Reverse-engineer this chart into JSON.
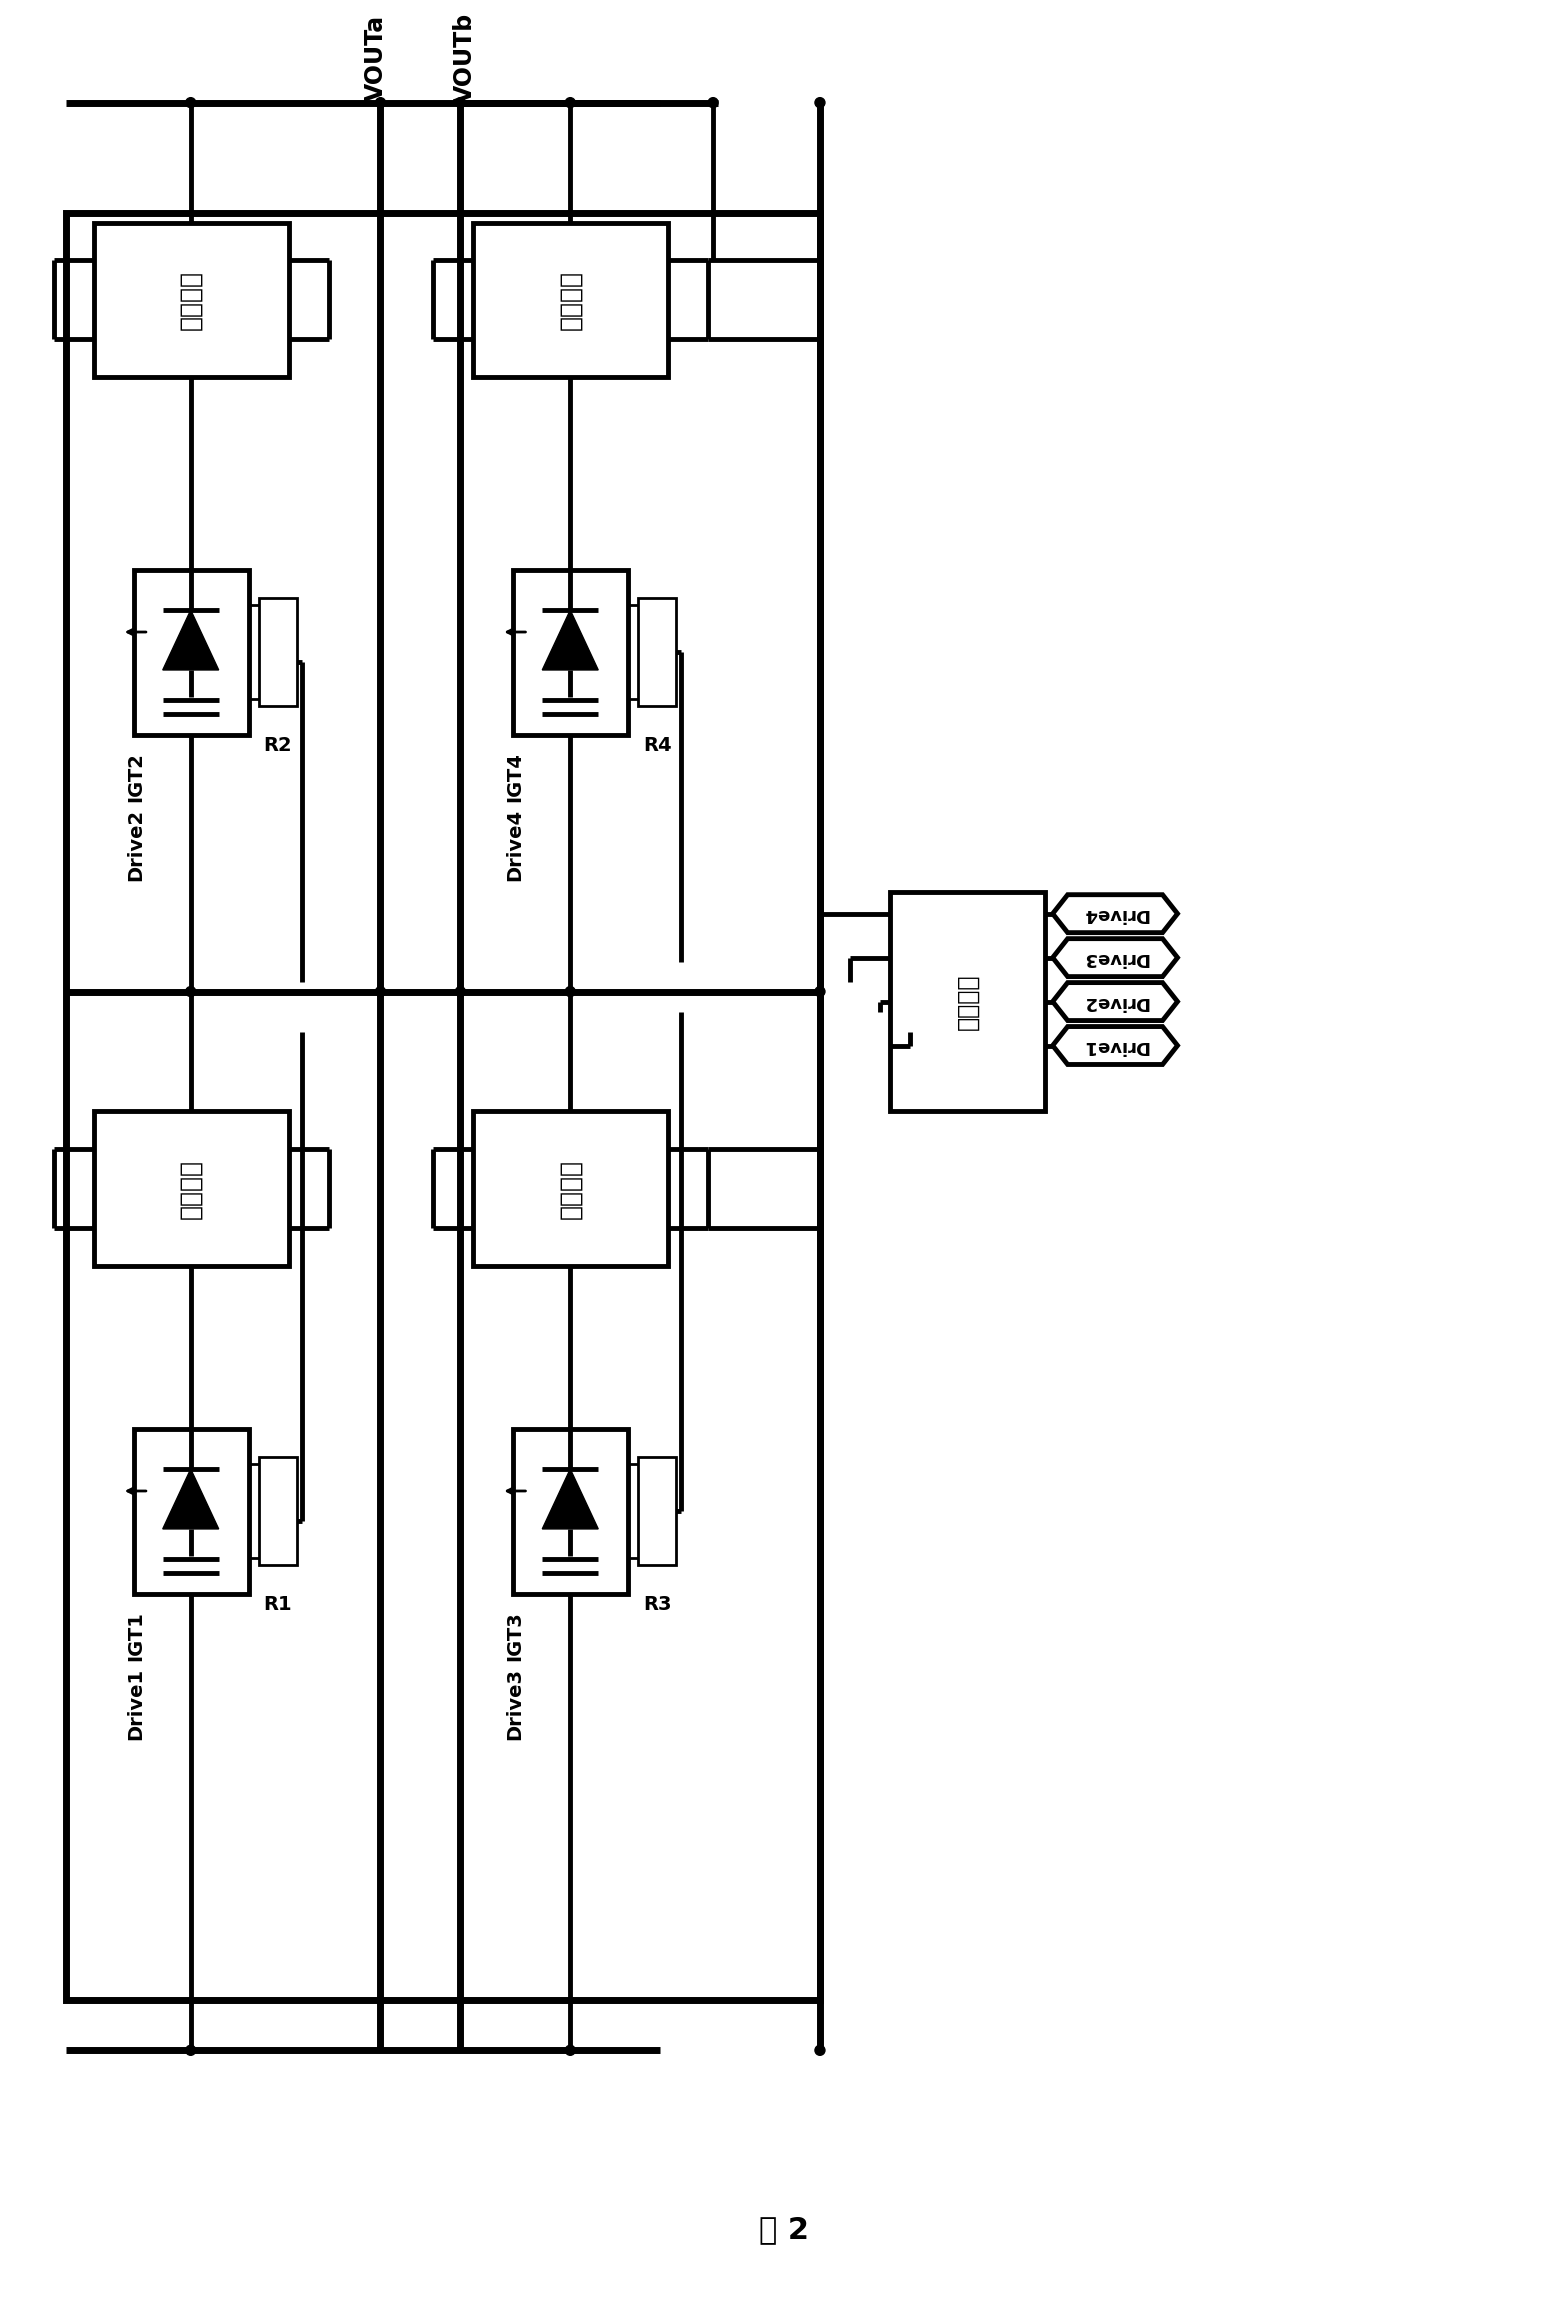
{
  "figsize": [
    15.68,
    23.05
  ],
  "dpi": 100,
  "bg_color": "#ffffff",
  "title": "图 2",
  "lw": 2.0,
  "lw_thick": 3.5,
  "lw_bus": 5.0,
  "vout_a": "VOUTa",
  "vout_b": "VOUTb",
  "cs_label": "电流采样",
  "cu_label": "控制单元",
  "drive_labels_right": [
    "Drive4",
    "Drive3",
    "Drive2",
    "Drive1"
  ],
  "igbt_labels": [
    "IGT2",
    "IGT4",
    "IGT1",
    "IGT3"
  ],
  "r_labels": [
    "R2",
    "R4",
    "R1",
    "R3"
  ],
  "drive_labels_left": [
    "Drive2",
    "Drive4",
    "Drive1",
    "Drive3"
  ]
}
